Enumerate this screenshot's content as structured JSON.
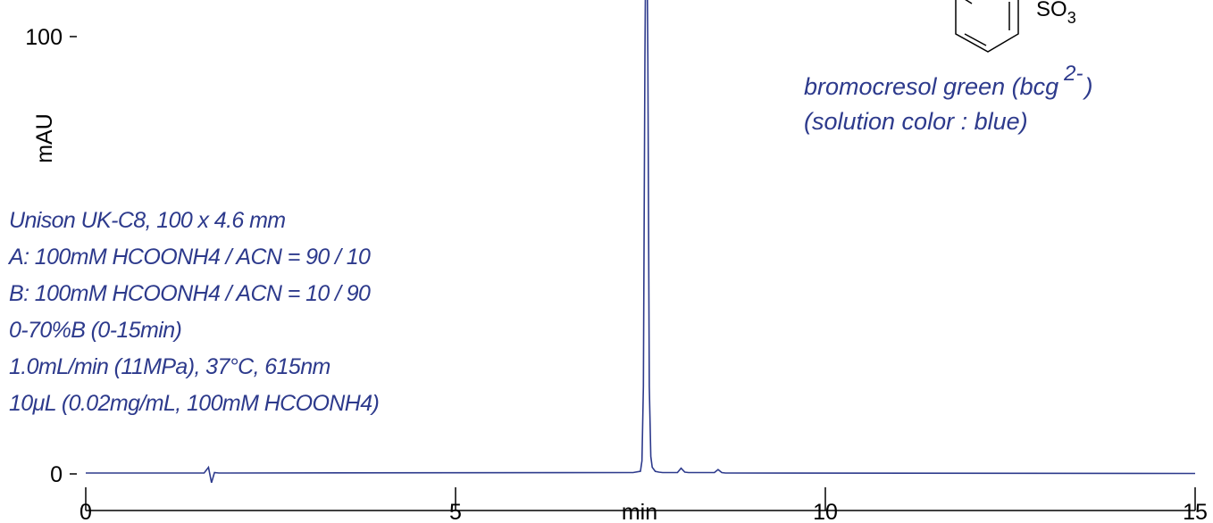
{
  "chart_data": {
    "type": "line",
    "ylabel": "mAU",
    "xlabel": "min",
    "xlim": [
      0,
      15
    ],
    "ylim": [
      0,
      120
    ],
    "x_ticks": [
      {
        "value": 0,
        "label": "0"
      },
      {
        "value": 5,
        "label": "5"
      },
      {
        "value": 10,
        "label": "10"
      },
      {
        "value": 15,
        "label": "15"
      }
    ],
    "y_ticks": [
      {
        "value": 0,
        "label": "0"
      },
      {
        "value": 100,
        "label": "100"
      }
    ],
    "series": [
      {
        "color": "#2d3a8c",
        "x": [
          0,
          1.6,
          1.66,
          1.7,
          1.74,
          1.8,
          7.4,
          7.5,
          7.52,
          7.54,
          7.56,
          7.58,
          7.6,
          7.62,
          7.64,
          7.66,
          7.7,
          7.75,
          7.8,
          8.0,
          8.05,
          8.1,
          8.15,
          8.5,
          8.55,
          8.6,
          8.65,
          15
        ],
        "y": [
          0.2,
          0.2,
          1.5,
          -2.0,
          0.3,
          0.2,
          0.3,
          0.6,
          3,
          20,
          95,
          140,
          95,
          20,
          4,
          1.5,
          0.6,
          0.4,
          0.3,
          0.3,
          1.3,
          0.4,
          0.3,
          0.3,
          1.0,
          0.3,
          0.2,
          0.1
        ]
      }
    ],
    "annotations": {
      "conditions": [
        "Unison UK-C8, 100 x 4.6 mm",
        "A: 100mM HCOONH4 / ACN = 90 / 10",
        "B: 100mM HCOONH4 / ACN = 10 / 90",
        "0-70%B (0-15min)",
        "1.0mL/min (11MPa), 37°C, 615nm",
        "10μL (0.02mg/mL, 100mM HCOONH4)"
      ],
      "compound_name": "bromocresol green (bcg",
      "compound_charge": "2-",
      "compound_name_close": ")",
      "solution_color": "(solution color : blue)",
      "structure_label": "SO",
      "structure_subscript": "3"
    }
  }
}
